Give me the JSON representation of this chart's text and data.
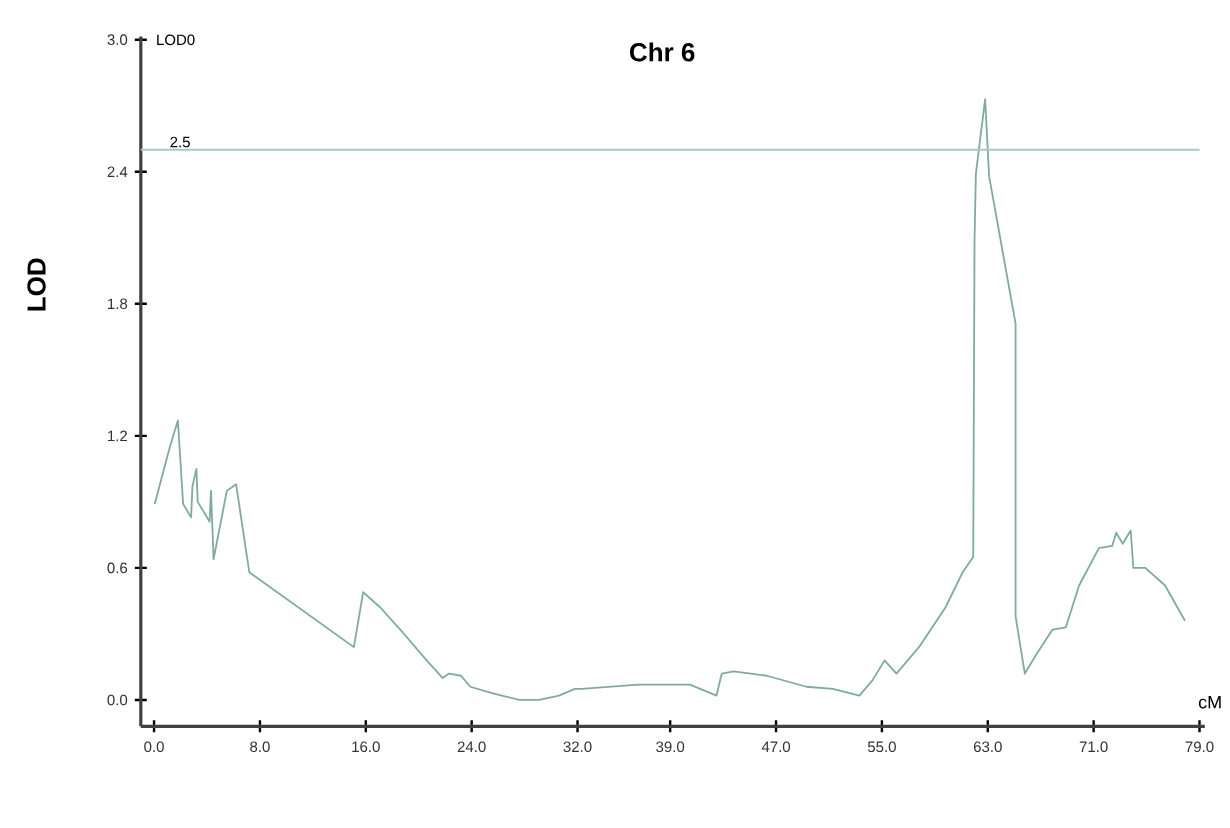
{
  "chart_data": {
    "type": "line",
    "title": "Chr 6",
    "xlabel": "cM",
    "ylabel": "LOD",
    "annotations": [
      "LOD0"
    ],
    "xlim": [
      -1,
      79.4
    ],
    "ylim": [
      -0.12,
      3.015
    ],
    "xticks": [
      {
        "value": 0,
        "label": "0.0"
      },
      {
        "value": 8,
        "label": "8.0"
      },
      {
        "value": 16,
        "label": "16.0"
      },
      {
        "value": 24,
        "label": "24.0"
      },
      {
        "value": 32,
        "label": "32.0"
      },
      {
        "value": 39,
        "label": "39.0"
      },
      {
        "value": 47,
        "label": "47.0"
      },
      {
        "value": 55,
        "label": "55.0"
      },
      {
        "value": 63,
        "label": "63.0"
      },
      {
        "value": 71,
        "label": "71.0"
      },
      {
        "value": 79,
        "label": "79.0"
      }
    ],
    "yticks": [
      {
        "value": 0,
        "label": "0.0"
      },
      {
        "value": 0.6,
        "label": "0.6"
      },
      {
        "value": 1.2,
        "label": "1.2"
      },
      {
        "value": 1.8,
        "label": "1.8"
      },
      {
        "value": 2.4,
        "label": "2.4"
      },
      {
        "value": 3.0,
        "label": "3.0"
      }
    ],
    "grid": false,
    "marker": "none",
    "line_style": "solid",
    "ref_lines": [
      {
        "axis": "y",
        "value": 2.5,
        "label": "2.5",
        "color": "#a9c9c1"
      }
    ],
    "series": [
      {
        "color": "#7fab9f",
        "x": [
          0.05,
          1.2,
          1.8,
          2.2,
          2.8,
          2.9,
          3.2,
          3.3,
          4.2,
          4.3,
          4.4,
          4.5,
          5.5,
          6.2,
          7.2,
          15.1,
          15.8,
          17.1,
          18.6,
          20.6,
          21.8,
          22.3,
          23.2,
          23.9,
          25.6,
          27.6,
          29.1,
          30.6,
          31.8,
          32.3,
          36.6,
          40.5,
          42.5,
          42.9,
          43.8,
          46.3,
          49.3,
          51.3,
          53.3,
          54.3,
          55.2,
          56.1,
          57.8,
          59.8,
          61.1,
          61.9,
          62.0,
          62.1,
          62.8,
          63.1,
          65.1,
          65.1,
          65.8,
          66.7,
          67.9,
          68.9,
          69.9,
          71.4,
          72.4,
          72.7,
          73.2,
          73.8,
          74.0,
          74.9,
          76.4,
          77.9
        ],
        "values": [
          0.89,
          1.15,
          1.27,
          0.89,
          0.83,
          0.97,
          1.05,
          0.9,
          0.81,
          0.95,
          0.8,
          0.64,
          0.95,
          0.98,
          0.58,
          0.24,
          0.49,
          0.42,
          0.32,
          0.18,
          0.1,
          0.12,
          0.11,
          0.06,
          0.03,
          0.0,
          0.0,
          0.02,
          0.05,
          0.05,
          0.07,
          0.07,
          0.02,
          0.12,
          0.13,
          0.11,
          0.06,
          0.05,
          0.02,
          0.09,
          0.18,
          0.12,
          0.24,
          0.42,
          0.58,
          0.65,
          2.09,
          2.39,
          2.73,
          2.38,
          1.71,
          0.38,
          0.12,
          0.21,
          0.32,
          0.33,
          0.52,
          0.69,
          0.7,
          0.76,
          0.71,
          0.77,
          0.6,
          0.6,
          0.52,
          0.36
        ]
      }
    ]
  }
}
